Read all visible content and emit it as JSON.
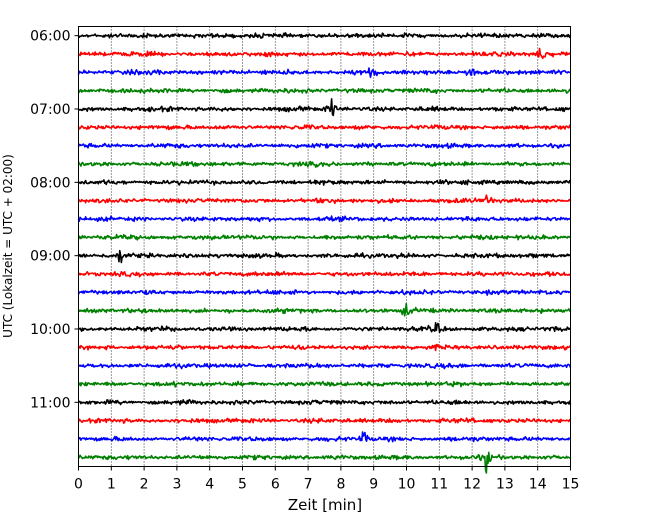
{
  "chart_data": {
    "type": "line",
    "title": "",
    "xlabel": "Zeit  [min]",
    "ylabel": "UTC (Lokalzeit = UTC + 02:00)",
    "xlim": [
      0,
      15
    ],
    "xticks": [
      0,
      1,
      2,
      3,
      4,
      5,
      6,
      7,
      8,
      9,
      10,
      11,
      12,
      13,
      14,
      15
    ],
    "ylim": [
      "05:52:30",
      "11:52:30"
    ],
    "ytick_labels": [
      "06:00",
      "07:00",
      "08:00",
      "09:00",
      "10:00",
      "11:00"
    ],
    "row_interval_min": 15,
    "grid": "vertical dotted lines at every minute",
    "color_cycle": [
      "#000000",
      "#ff0000",
      "#0000ff",
      "#008000"
    ],
    "series": [
      {
        "start": "06:00",
        "color": "#000000"
      },
      {
        "start": "06:15",
        "color": "#ff0000"
      },
      {
        "start": "06:30",
        "color": "#0000ff"
      },
      {
        "start": "06:45",
        "color": "#008000"
      },
      {
        "start": "07:00",
        "color": "#000000"
      },
      {
        "start": "07:15",
        "color": "#ff0000"
      },
      {
        "start": "07:30",
        "color": "#0000ff"
      },
      {
        "start": "07:45",
        "color": "#008000"
      },
      {
        "start": "08:00",
        "color": "#000000"
      },
      {
        "start": "08:15",
        "color": "#ff0000"
      },
      {
        "start": "08:30",
        "color": "#0000ff"
      },
      {
        "start": "08:45",
        "color": "#008000"
      },
      {
        "start": "09:00",
        "color": "#000000"
      },
      {
        "start": "09:15",
        "color": "#ff0000"
      },
      {
        "start": "09:30",
        "color": "#0000ff"
      },
      {
        "start": "09:45",
        "color": "#008000"
      },
      {
        "start": "10:00",
        "color": "#000000"
      },
      {
        "start": "10:15",
        "color": "#ff0000"
      },
      {
        "start": "10:30",
        "color": "#0000ff"
      },
      {
        "start": "10:45",
        "color": "#008000"
      },
      {
        "start": "11:00",
        "color": "#000000"
      },
      {
        "start": "11:15",
        "color": "#ff0000"
      },
      {
        "start": "11:30",
        "color": "#0000ff"
      },
      {
        "start": "11:45",
        "color": "#008000"
      }
    ],
    "events": [
      {
        "row_start": "06:15",
        "minute": 14.1,
        "amplitude": 2.2
      },
      {
        "row_start": "06:30",
        "minute": 8.95,
        "amplitude": 2.4
      },
      {
        "row_start": "06:30",
        "minute": 11.95,
        "amplitude": 1.8
      },
      {
        "row_start": "07:00",
        "minute": 7.7,
        "amplitude": 2.8
      },
      {
        "row_start": "08:15",
        "minute": 12.5,
        "amplitude": 1.2
      },
      {
        "row_start": "09:00",
        "minute": 1.3,
        "amplitude": 1.6
      },
      {
        "row_start": "09:45",
        "minute": 10.0,
        "amplitude": 1.4
      },
      {
        "row_start": "10:00",
        "minute": 10.9,
        "amplitude": 1.3
      },
      {
        "row_start": "11:30",
        "minute": 8.7,
        "amplitude": 1.6
      },
      {
        "row_start": "11:45",
        "minute": 12.45,
        "amplitude": 3.0
      }
    ]
  }
}
